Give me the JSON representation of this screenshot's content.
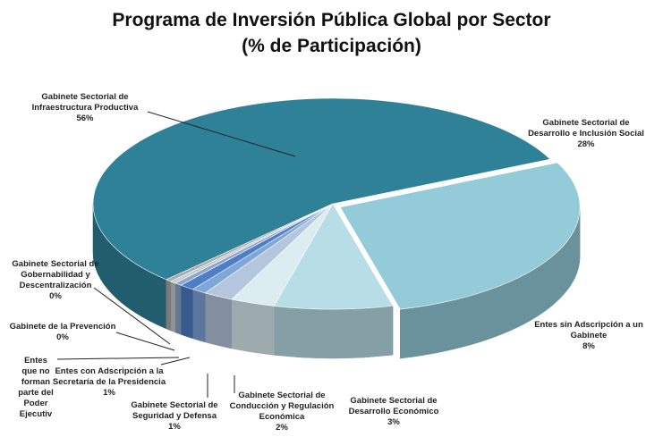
{
  "chart_data": {
    "type": "pie3d",
    "title": "Programa de Inversión Pública Global por Sector",
    "subtitle": "(% de Participación)",
    "categories": [
      "Gabinete Sectorial de Infraestructura Productiva",
      "Gabinete Sectorial de Desarrollo e Inclusión Social",
      "Entes sin Adscripción a un Gabinete",
      "Gabinete Sectorial de Desarrollo Económico",
      "Gabinete Sectorial de Conducción y Regulación Económica",
      "Gabinete Sectorial de Seguridad y Defensa",
      "Entes con Adscripción a la Secretaría de la Presidencia",
      "Entes que no forman parte del Poder Ejecutiv",
      "Gabinete de la Prevención",
      "Gabinete Sectorial de Gobernabilidad y Descentralización"
    ],
    "values": [
      56,
      28,
      8,
      3,
      2,
      1,
      1,
      0.5,
      0.4,
      0.4
    ],
    "value_labels": [
      "56%",
      "28%",
      "8%",
      "3%",
      "2%",
      "1%",
      "1%",
      null,
      "0%",
      "0%"
    ],
    "colors": [
      "#2f8197",
      "#93cbd9",
      "#b7dde6",
      "#dbedf1",
      "#b3c6de",
      "#7fa6d8",
      "#4d7ec6",
      "#8ea7c7",
      "#c5ccd3",
      "#a9aaac"
    ]
  }
}
